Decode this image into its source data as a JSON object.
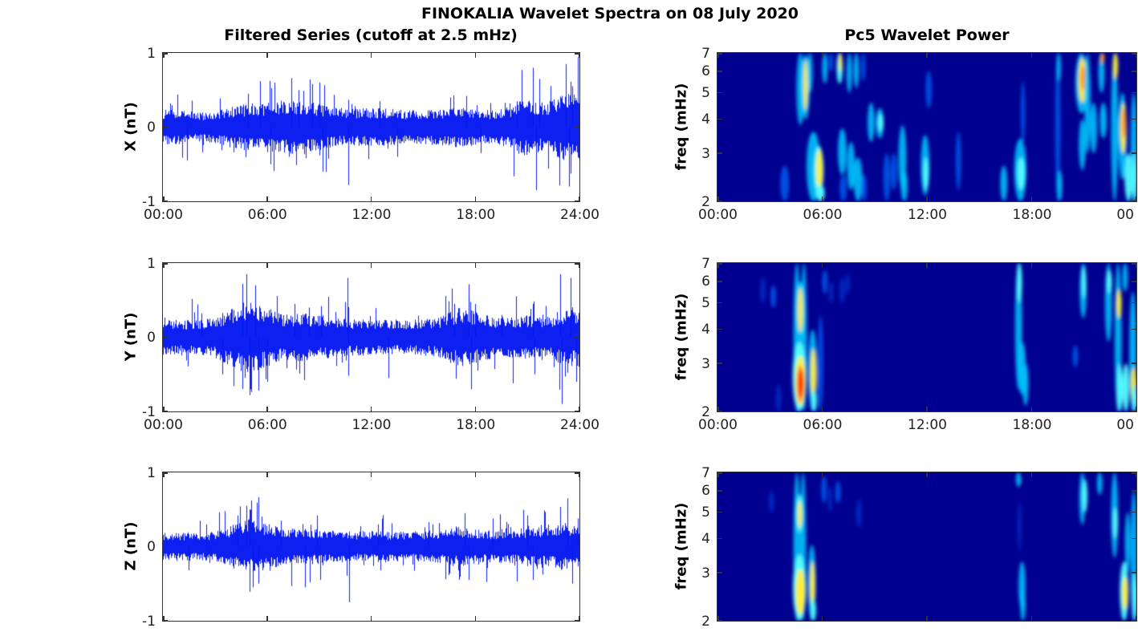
{
  "figure": {
    "title": "FINOKALIA Wavelet Spectra on 08 July 2020"
  },
  "columns": {
    "left_title": "Filtered Series (cutoff at 2.5 mHz)",
    "right_title": "Pc5 Wavelet Power"
  },
  "chart_data": [
    {
      "id": "filtered-series-x",
      "type": "line",
      "title": "Filtered Series (cutoff at 2.5 mHz)",
      "ylabel": "X (nT)",
      "ylim": [
        -1,
        1
      ],
      "xlim_hours": [
        0,
        24
      ],
      "line_color": "#0014f0",
      "y_tick_labels": [
        "1",
        "0",
        "-1"
      ],
      "x_tick_hours": [
        0,
        6,
        12,
        18,
        24
      ],
      "x_tick_labels": [
        "00:00",
        "06:00",
        "12:00",
        "18:00",
        "24:00"
      ],
      "noise_envelope_hourly": [
        0.15,
        0.15,
        0.13,
        0.14,
        0.18,
        0.21,
        0.22,
        0.24,
        0.24,
        0.21,
        0.17,
        0.16,
        0.17,
        0.16,
        0.15,
        0.15,
        0.16,
        0.18,
        0.16,
        0.15,
        0.18,
        0.26,
        0.2,
        0.3,
        0.28
      ],
      "spikes": [
        [
          1.4,
          -0.45
        ],
        [
          4.9,
          0.45
        ],
        [
          5.6,
          0.62
        ],
        [
          6.2,
          -0.5
        ],
        [
          7.4,
          0.66
        ],
        [
          7.8,
          0.5
        ],
        [
          8.6,
          0.58
        ],
        [
          9.0,
          0.6
        ],
        [
          9.2,
          -0.6
        ],
        [
          10.7,
          -0.78
        ],
        [
          12.5,
          0.35
        ],
        [
          13.5,
          -0.4
        ],
        [
          17.5,
          0.42
        ],
        [
          18.3,
          -0.35
        ],
        [
          20.4,
          0.35
        ],
        [
          21.3,
          0.8
        ],
        [
          21.5,
          -0.85
        ],
        [
          21.7,
          0.65
        ],
        [
          23.2,
          0.85
        ],
        [
          23.4,
          -0.8
        ],
        [
          23.6,
          0.55
        ]
      ]
    },
    {
      "id": "filtered-series-y",
      "type": "line",
      "ylabel": "Y (nT)",
      "ylim": [
        -1,
        1
      ],
      "xlim_hours": [
        0,
        24
      ],
      "line_color": "#0014f0",
      "y_tick_labels": [
        "1",
        "0",
        "-1"
      ],
      "x_tick_hours": [
        0,
        6,
        12,
        18,
        24
      ],
      "x_tick_labels": [
        "00:00",
        "06:00",
        "12:00",
        "18:00",
        "24:00"
      ],
      "noise_envelope_hourly": [
        0.16,
        0.15,
        0.15,
        0.18,
        0.26,
        0.34,
        0.26,
        0.2,
        0.21,
        0.2,
        0.17,
        0.16,
        0.16,
        0.15,
        0.15,
        0.16,
        0.18,
        0.26,
        0.23,
        0.18,
        0.18,
        0.19,
        0.17,
        0.24,
        0.26
      ],
      "spikes": [
        [
          2.2,
          0.32
        ],
        [
          3.4,
          -0.5
        ],
        [
          4.6,
          0.72
        ],
        [
          4.8,
          0.85
        ],
        [
          5.0,
          -0.78
        ],
        [
          5.3,
          0.7
        ],
        [
          5.5,
          -0.72
        ],
        [
          6.0,
          -0.6
        ],
        [
          7.6,
          0.45
        ],
        [
          8.4,
          0.4
        ],
        [
          9.1,
          0.42
        ],
        [
          10.65,
          0.8
        ],
        [
          10.7,
          -0.52
        ],
        [
          13.0,
          -0.55
        ],
        [
          16.8,
          0.45
        ],
        [
          17.6,
          0.55
        ],
        [
          17.75,
          -0.7
        ],
        [
          18.0,
          0.45
        ],
        [
          19.5,
          0.3
        ],
        [
          21.3,
          0.45
        ],
        [
          21.4,
          -0.5
        ],
        [
          22.9,
          0.85
        ],
        [
          23.0,
          -0.9
        ],
        [
          23.5,
          0.8
        ],
        [
          23.8,
          -0.6
        ]
      ]
    },
    {
      "id": "filtered-series-z",
      "type": "line",
      "ylabel": "Z (nT)",
      "ylim": [
        -1,
        1
      ],
      "xlim_hours": [
        0,
        24
      ],
      "line_color": "#0014f0",
      "y_tick_labels": [
        "1",
        "0",
        "-1"
      ],
      "x_tick_hours": [
        0,
        6,
        12,
        18,
        24
      ],
      "x_tick_labels": [],
      "noise_envelope_hourly": [
        0.12,
        0.12,
        0.12,
        0.13,
        0.19,
        0.24,
        0.2,
        0.16,
        0.16,
        0.15,
        0.14,
        0.13,
        0.14,
        0.13,
        0.13,
        0.14,
        0.15,
        0.18,
        0.15,
        0.14,
        0.15,
        0.17,
        0.17,
        0.21,
        0.2
      ],
      "spikes": [
        [
          1.5,
          -0.32
        ],
        [
          2.5,
          0.3
        ],
        [
          4.3,
          0.42
        ],
        [
          4.8,
          0.55
        ],
        [
          5.0,
          0.5
        ],
        [
          5.2,
          -0.55
        ],
        [
          5.5,
          -0.5
        ],
        [
          6.8,
          0.35
        ],
        [
          8.2,
          -0.55
        ],
        [
          8.9,
          0.42
        ],
        [
          10.75,
          -0.75
        ],
        [
          12.4,
          0.3
        ],
        [
          15.3,
          0.33
        ],
        [
          17.4,
          0.45
        ],
        [
          17.6,
          -0.45
        ],
        [
          19.0,
          0.38
        ],
        [
          21.0,
          0.42
        ],
        [
          21.3,
          -0.45
        ],
        [
          23.3,
          0.65
        ],
        [
          23.6,
          -0.5
        ],
        [
          23.9,
          0.38
        ]
      ]
    },
    {
      "id": "pc5-wavelet-power-x",
      "type": "heatmap",
      "title": "Pc5 Wavelet Power",
      "ylabel": "freq (mHz)",
      "y_scale": "log",
      "freq_mhz_range": [
        2,
        7
      ],
      "xlim_hours": [
        0,
        24
      ],
      "colormap": "jet",
      "background": "#000090",
      "y_tick_labels": [
        "7",
        "6",
        "5",
        "4",
        "3",
        "2"
      ],
      "x_tick_hours": [
        0,
        6,
        12,
        18,
        24
      ],
      "x_tick_labels": [
        "00:00",
        "06:00",
        "12:00",
        "18:00",
        "00"
      ],
      "blobs": [
        [
          3.85,
          2.0,
          2.7,
          0.5,
          2
        ],
        [
          4.75,
          3.8,
          7.0,
          0.45,
          3
        ],
        [
          5.05,
          4.0,
          6.9,
          0.5,
          3
        ],
        [
          5.05,
          4.3,
          6.6,
          0.25,
          5
        ],
        [
          5.3,
          5.0,
          7.0,
          0.3,
          3
        ],
        [
          5.5,
          2.0,
          3.6,
          0.8,
          3
        ],
        [
          5.8,
          2.1,
          3.2,
          0.55,
          4
        ],
        [
          5.85,
          2.2,
          3.1,
          0.4,
          5
        ],
        [
          5.9,
          2.0,
          2.3,
          0.5,
          4
        ],
        [
          6.15,
          5.4,
          7.0,
          0.3,
          3
        ],
        [
          6.5,
          6.0,
          7.0,
          0.25,
          2
        ],
        [
          7.0,
          5.4,
          7.0,
          0.35,
          4
        ],
        [
          7.05,
          6.0,
          7.0,
          0.2,
          5
        ],
        [
          7.15,
          2.5,
          3.7,
          0.5,
          3
        ],
        [
          7.2,
          2.0,
          2.5,
          0.4,
          2
        ],
        [
          7.55,
          5.0,
          7.0,
          0.3,
          3
        ],
        [
          7.65,
          2.2,
          3.3,
          0.45,
          3
        ],
        [
          7.95,
          5.2,
          7.0,
          0.3,
          3
        ],
        [
          8.05,
          2.0,
          2.9,
          0.5,
          3
        ],
        [
          8.35,
          5.5,
          7.0,
          0.25,
          2
        ],
        [
          8.4,
          2.0,
          2.5,
          0.3,
          2
        ],
        [
          8.8,
          3.3,
          4.6,
          0.4,
          3
        ],
        [
          9.3,
          3.4,
          4.4,
          0.45,
          3
        ],
        [
          9.35,
          3.6,
          4.2,
          0.3,
          4
        ],
        [
          9.7,
          2.0,
          3.0,
          0.4,
          2
        ],
        [
          10.1,
          2.2,
          3.0,
          0.35,
          2
        ],
        [
          10.6,
          2.2,
          3.8,
          0.45,
          3
        ],
        [
          10.7,
          2.0,
          2.6,
          0.4,
          3
        ],
        [
          11.9,
          2.1,
          3.5,
          0.5,
          3
        ],
        [
          11.95,
          2.2,
          2.9,
          0.3,
          4
        ],
        [
          12.1,
          4.4,
          6.0,
          0.35,
          2
        ],
        [
          13.8,
          2.2,
          3.6,
          0.3,
          2
        ],
        [
          16.4,
          2.0,
          2.7,
          0.4,
          3
        ],
        [
          17.35,
          2.0,
          3.4,
          0.7,
          3
        ],
        [
          17.4,
          2.2,
          2.9,
          0.45,
          4
        ],
        [
          17.5,
          3.2,
          5.5,
          0.25,
          2
        ],
        [
          19.5,
          2.0,
          7.0,
          0.3,
          2
        ],
        [
          19.55,
          5.5,
          7.0,
          0.25,
          3
        ],
        [
          19.6,
          2.0,
          2.6,
          0.3,
          3
        ],
        [
          20.85,
          4.2,
          7.0,
          0.7,
          3
        ],
        [
          20.9,
          4.6,
          6.7,
          0.45,
          5
        ],
        [
          20.95,
          5.1,
          6.3,
          0.3,
          6
        ],
        [
          20.9,
          2.6,
          4.0,
          0.4,
          3
        ],
        [
          21.2,
          3.0,
          7.0,
          0.35,
          3
        ],
        [
          21.55,
          3.0,
          4.6,
          0.4,
          3
        ],
        [
          22.0,
          5.0,
          7.0,
          0.35,
          3
        ],
        [
          22.05,
          6.4,
          7.0,
          0.25,
          6
        ],
        [
          22.1,
          3.4,
          4.6,
          0.4,
          3
        ],
        [
          22.75,
          2.0,
          7.0,
          0.4,
          3
        ],
        [
          22.8,
          5.6,
          7.0,
          0.3,
          5
        ],
        [
          23.2,
          2.4,
          5.0,
          0.5,
          3
        ],
        [
          23.25,
          3.0,
          4.6,
          0.35,
          5
        ],
        [
          23.3,
          3.4,
          4.4,
          0.25,
          6
        ],
        [
          23.55,
          2.0,
          3.0,
          0.45,
          4
        ],
        [
          23.85,
          2.0,
          5.0,
          0.35,
          3
        ],
        [
          23.9,
          2.0,
          3.0,
          0.3,
          4
        ]
      ]
    },
    {
      "id": "pc5-wavelet-power-y",
      "type": "heatmap",
      "ylabel": "freq (mHz)",
      "y_scale": "log",
      "freq_mhz_range": [
        2,
        7
      ],
      "xlim_hours": [
        0,
        24
      ],
      "colormap": "jet",
      "background": "#000090",
      "y_tick_labels": [
        "7",
        "6",
        "5",
        "4",
        "3",
        "2"
      ],
      "x_tick_hours": [
        0,
        6,
        12,
        18,
        24
      ],
      "x_tick_labels": [
        "00:00",
        "06:00",
        "12:00",
        "18:00",
        "00"
      ],
      "blobs": [
        [
          2.6,
          5.0,
          6.2,
          0.3,
          1
        ],
        [
          3.2,
          4.8,
          5.8,
          0.3,
          2
        ],
        [
          3.5,
          2.0,
          2.5,
          0.3,
          1
        ],
        [
          4.55,
          2.0,
          7.0,
          0.4,
          3
        ],
        [
          4.95,
          2.0,
          7.0,
          0.35,
          3
        ],
        [
          4.75,
          3.6,
          6.0,
          0.5,
          3
        ],
        [
          4.75,
          3.9,
          5.7,
          0.3,
          5
        ],
        [
          4.7,
          2.0,
          3.6,
          0.8,
          4
        ],
        [
          4.75,
          2.1,
          3.2,
          0.6,
          5
        ],
        [
          4.75,
          2.15,
          2.95,
          0.45,
          6
        ],
        [
          4.78,
          2.25,
          2.85,
          0.3,
          7
        ],
        [
          5.45,
          2.0,
          4.0,
          0.5,
          3
        ],
        [
          5.5,
          2.2,
          3.4,
          0.35,
          5
        ],
        [
          5.55,
          2.0,
          2.4,
          0.3,
          4
        ],
        [
          5.9,
          2.0,
          4.5,
          0.3,
          2
        ],
        [
          6.15,
          5.4,
          6.6,
          0.3,
          2
        ],
        [
          6.5,
          5.0,
          6.0,
          0.25,
          1
        ],
        [
          7.15,
          5.0,
          6.2,
          0.3,
          1
        ],
        [
          7.45,
          5.4,
          6.4,
          0.25,
          1
        ],
        [
          17.25,
          2.4,
          7.0,
          0.4,
          3
        ],
        [
          17.3,
          5.0,
          7.0,
          0.3,
          4
        ],
        [
          17.45,
          2.3,
          3.6,
          0.45,
          3
        ],
        [
          17.65,
          2.1,
          3.0,
          0.35,
          3
        ],
        [
          20.5,
          2.9,
          3.5,
          0.3,
          2
        ],
        [
          20.95,
          4.4,
          7.0,
          0.4,
          3
        ],
        [
          21.0,
          5.2,
          6.8,
          0.25,
          4
        ],
        [
          22.4,
          3.6,
          7.0,
          0.4,
          3
        ],
        [
          22.45,
          5.4,
          6.6,
          0.3,
          4
        ],
        [
          22.95,
          2.0,
          7.0,
          0.4,
          3
        ],
        [
          23.0,
          4.4,
          5.6,
          0.3,
          5
        ],
        [
          23.05,
          2.0,
          3.0,
          0.35,
          4
        ],
        [
          23.35,
          5.5,
          7.0,
          0.3,
          3
        ],
        [
          23.4,
          2.0,
          3.0,
          0.4,
          4
        ],
        [
          23.8,
          2.0,
          5.5,
          0.4,
          3
        ],
        [
          23.85,
          2.1,
          2.9,
          0.35,
          5
        ],
        [
          23.9,
          2.0,
          2.5,
          0.3,
          4
        ]
      ]
    },
    {
      "id": "pc5-wavelet-power-z",
      "type": "heatmap",
      "ylabel": "freq (mHz)",
      "y_scale": "log",
      "freq_mhz_range": [
        2,
        7
      ],
      "xlim_hours": [
        0,
        24
      ],
      "colormap": "jet",
      "background": "#000090",
      "y_tick_labels": [
        "7",
        "6",
        "5",
        "4",
        "3",
        "2"
      ],
      "x_tick_hours": [
        0,
        6,
        12,
        18,
        24
      ],
      "x_tick_labels": [],
      "blobs": [
        [
          3.1,
          5.0,
          6.0,
          0.3,
          1
        ],
        [
          4.55,
          2.0,
          7.0,
          0.4,
          3
        ],
        [
          4.9,
          2.0,
          7.0,
          0.35,
          3
        ],
        [
          4.7,
          4.2,
          5.8,
          0.35,
          4
        ],
        [
          4.72,
          4.4,
          5.5,
          0.25,
          5
        ],
        [
          4.7,
          2.0,
          3.5,
          0.75,
          4
        ],
        [
          4.75,
          2.1,
          3.1,
          0.55,
          5
        ],
        [
          4.78,
          2.3,
          2.9,
          0.35,
          5
        ],
        [
          5.4,
          2.0,
          3.8,
          0.45,
          3
        ],
        [
          5.45,
          2.2,
          3.3,
          0.3,
          5
        ],
        [
          5.5,
          2.0,
          2.4,
          0.3,
          4
        ],
        [
          6.1,
          5.4,
          6.8,
          0.3,
          2
        ],
        [
          6.45,
          5.0,
          6.2,
          0.25,
          1
        ],
        [
          6.9,
          5.4,
          6.5,
          0.3,
          2
        ],
        [
          8.1,
          4.4,
          5.6,
          0.3,
          1
        ],
        [
          17.25,
          6.2,
          7.0,
          0.3,
          3
        ],
        [
          17.3,
          3.6,
          5.5,
          0.2,
          1
        ],
        [
          17.45,
          2.2,
          3.3,
          0.4,
          3
        ],
        [
          17.5,
          2.0,
          2.6,
          0.3,
          3
        ],
        [
          20.9,
          4.5,
          7.0,
          0.35,
          3
        ],
        [
          21.05,
          5.0,
          6.6,
          0.3,
          4
        ],
        [
          21.9,
          5.8,
          7.0,
          0.3,
          3
        ],
        [
          22.75,
          3.4,
          7.0,
          0.4,
          3
        ],
        [
          22.8,
          4.0,
          5.2,
          0.3,
          4
        ],
        [
          23.3,
          2.0,
          3.3,
          0.5,
          4
        ],
        [
          23.35,
          2.2,
          2.9,
          0.35,
          5
        ],
        [
          23.5,
          3.0,
          5.0,
          0.3,
          3
        ],
        [
          23.85,
          2.0,
          6.0,
          0.35,
          3
        ],
        [
          23.9,
          2.0,
          3.0,
          0.3,
          4
        ]
      ]
    }
  ]
}
